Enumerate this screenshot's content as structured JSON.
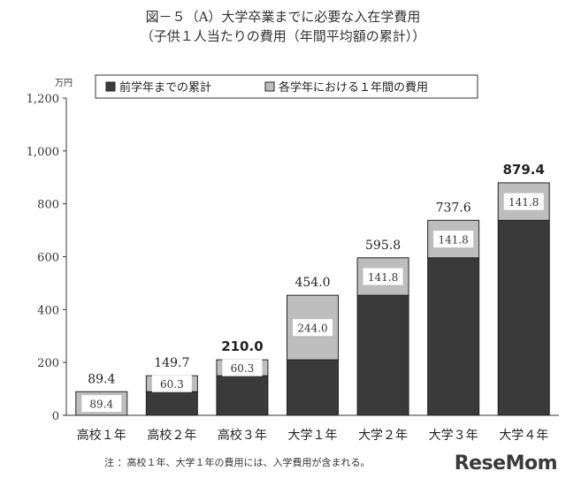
{
  "header": {
    "title_line1": "図－５（A）大学卒業までに必要な入在学費用",
    "title_line2": "（子供１人当たりの費用（年間平均額の累計））"
  },
  "chart_data": {
    "type": "bar",
    "stacked": true,
    "unit": "万円",
    "categories": [
      "高校１年",
      "高校２年",
      "高校３年",
      "大学１年",
      "大学２年",
      "大学３年",
      "大学４年"
    ],
    "series": [
      {
        "name": "前学年までの累計",
        "color": "#3a3a3a",
        "values": [
          0,
          89.4,
          149.7,
          210.0,
          454.0,
          595.8,
          737.6
        ]
      },
      {
        "name": "各学年における１年間の費用",
        "color": "#bdbdbd",
        "values": [
          89.4,
          60.3,
          60.3,
          244.0,
          141.8,
          141.8,
          141.8
        ]
      }
    ],
    "segment_labels": [
      "89.4",
      "60.3",
      "60.3",
      "244.0",
      "141.8",
      "141.8",
      "141.8"
    ],
    "total_labels": [
      "89.4",
      "149.7",
      "210.0",
      "454.0",
      "595.8",
      "737.6",
      "879.4"
    ],
    "bold_totals": [
      false,
      false,
      true,
      false,
      false,
      false,
      true
    ],
    "yticks": [
      "0",
      "200",
      "400",
      "600",
      "800",
      "1,000",
      "1,200"
    ],
    "ylim": [
      0,
      1200
    ],
    "legend_position": "top"
  },
  "footer": {
    "note": "注 ：高校１年、大学１年の費用には、入学費用が含まれる。",
    "logo": "ReseMom"
  }
}
